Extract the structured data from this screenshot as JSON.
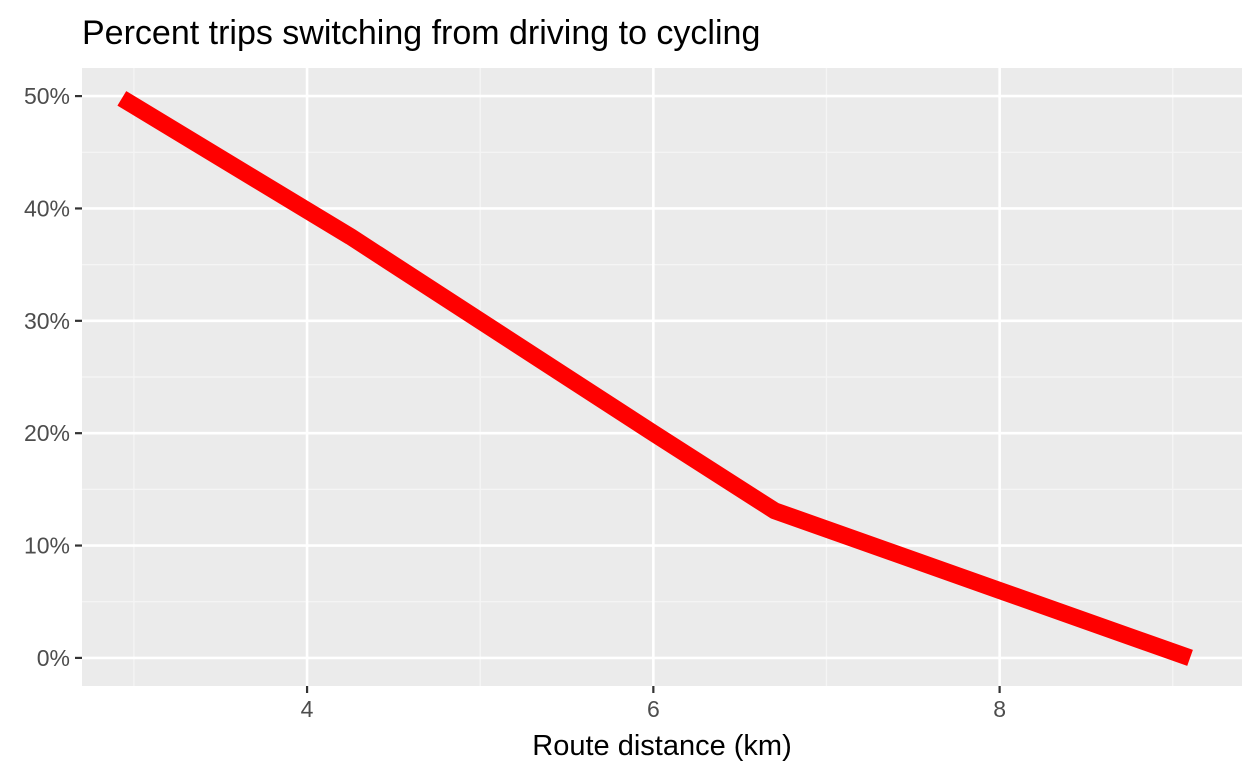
{
  "chart_data": {
    "type": "line",
    "title": "Percent trips switching from driving to cycling",
    "xlabel": "Route distance (km)",
    "ylabel": "",
    "xlim": [
      2.7,
      9.4
    ],
    "ylim": [
      -0.025,
      0.525
    ],
    "x_ticks": [
      {
        "value": 4,
        "label": "4"
      },
      {
        "value": 6,
        "label": "6"
      },
      {
        "value": 8,
        "label": "8"
      }
    ],
    "x_minor_ticks": [
      3,
      5,
      7,
      9
    ],
    "y_ticks": [
      {
        "value": 0.0,
        "label": "0%"
      },
      {
        "value": 0.1,
        "label": "10%"
      },
      {
        "value": 0.2,
        "label": "20%"
      },
      {
        "value": 0.3,
        "label": "30%"
      },
      {
        "value": 0.4,
        "label": "40%"
      },
      {
        "value": 0.5,
        "label": "50%"
      }
    ],
    "y_minor_ticks": [
      0.05,
      0.15,
      0.25,
      0.35,
      0.45
    ],
    "grid": true,
    "series": [
      {
        "color": "#ff0000",
        "x": [
          2.93,
          4.25,
          6.0,
          6.7,
          8.0,
          9.1
        ],
        "y": [
          0.498,
          0.375,
          0.2,
          0.131,
          0.06,
          0.0
        ]
      }
    ]
  },
  "colors": {
    "panel_background": "#ebebeb",
    "grid_major": "#ffffff",
    "grid_minor": "#f5f5f5",
    "tick_text": "#4d4d4d",
    "tick_mark": "#333333",
    "line": "#ff0000"
  }
}
